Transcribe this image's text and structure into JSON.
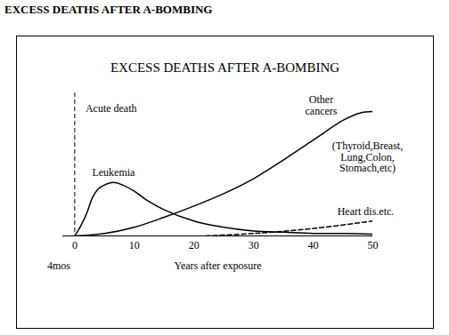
{
  "page_heading": "EXCESS DEATHS AFTER A-BOMBING",
  "chart_data": {
    "type": "line",
    "title": "EXCESS DEATHS AFTER A-BOMBING",
    "x_label": "Years after exposure",
    "xlim": [
      -2,
      50
    ],
    "xticks": [
      0,
      10,
      20,
      30,
      40,
      50
    ],
    "ylim": [
      0,
      115
    ],
    "tick_labels": "x",
    "series": [
      {
        "name": "Leukemia",
        "color": "#000000",
        "line_style": "solid",
        "x": [
          0,
          1,
          2,
          3,
          4,
          5,
          6.5,
          8,
          10,
          12,
          15,
          20,
          25,
          30,
          35,
          40,
          45,
          50
        ],
        "values": [
          0,
          8,
          18,
          31,
          38,
          41,
          43,
          41,
          36,
          29,
          21,
          12,
          7,
          4,
          3,
          2,
          2,
          1.5
        ]
      },
      {
        "name": "Other cancers",
        "detail": "(Thyroid,Breast,\nLung,Colon,\nStomach,etc)",
        "color": "#000000",
        "line_style": "solid",
        "x": [
          0,
          5,
          10,
          15,
          20,
          25,
          30,
          35,
          40,
          45,
          48,
          50
        ],
        "values": [
          0,
          2,
          7,
          15,
          24,
          34,
          46,
          61,
          77,
          93,
          99,
          100
        ]
      },
      {
        "name": "Heart dis.etc.",
        "color": "#000000",
        "line_style": "dashed",
        "x": [
          22,
          30,
          40,
          50
        ],
        "values": [
          0,
          2,
          6,
          12
        ]
      }
    ],
    "rules": [
      {
        "name": "Acute death",
        "x": 0,
        "label": "4mos",
        "color": "#000000",
        "line_style": "dashed"
      }
    ]
  }
}
